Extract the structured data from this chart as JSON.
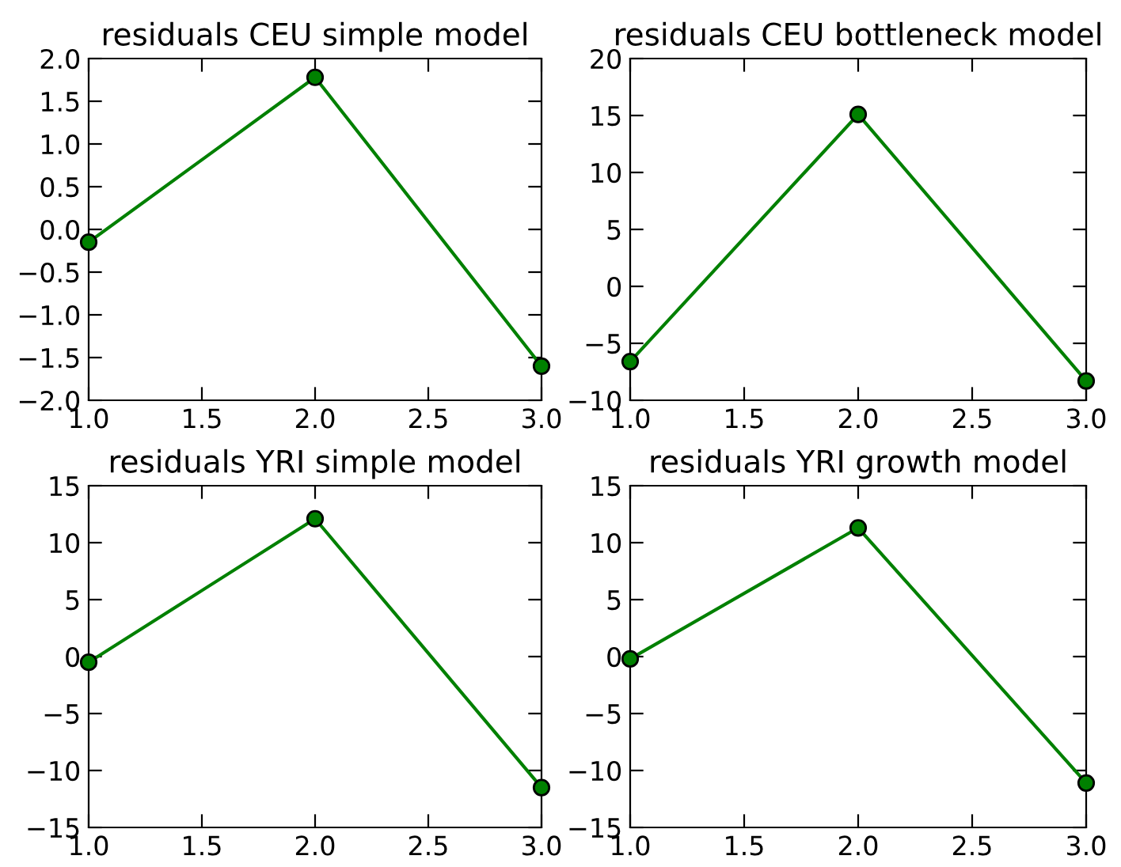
{
  "chart_data": [
    {
      "type": "line",
      "title": "residuals CEU simple model",
      "x": [
        1,
        2,
        3
      ],
      "series": [
        {
          "color": "#008000",
          "values": [
            -0.15,
            1.78,
            -1.6
          ]
        }
      ],
      "xlim": [
        1.0,
        3.0
      ],
      "xticks": [
        {
          "value": 1.0,
          "label": "1.0"
        },
        {
          "value": 1.5,
          "label": "1.5"
        },
        {
          "value": 2.0,
          "label": "2.0"
        },
        {
          "value": 2.5,
          "label": "2.5"
        },
        {
          "value": 3.0,
          "label": "3.0"
        }
      ],
      "ylim": [
        -2.0,
        2.0
      ],
      "yticks": [
        {
          "value": -2.0,
          "label": "−2.0"
        },
        {
          "value": -1.5,
          "label": "−1.5"
        },
        {
          "value": -1.0,
          "label": "−1.0"
        },
        {
          "value": -0.5,
          "label": "−0.5"
        },
        {
          "value": 0.0,
          "label": "0.0"
        },
        {
          "value": 0.5,
          "label": "0.5"
        },
        {
          "value": 1.0,
          "label": "1.0"
        },
        {
          "value": 1.5,
          "label": "1.5"
        },
        {
          "value": 2.0,
          "label": "2.0"
        }
      ],
      "marker": "circle",
      "grid": false
    },
    {
      "type": "line",
      "title": "residuals CEU bottleneck model",
      "x": [
        1,
        2,
        3
      ],
      "series": [
        {
          "color": "#008000",
          "values": [
            -6.6,
            15.1,
            -8.3
          ]
        }
      ],
      "xlim": [
        1.0,
        3.0
      ],
      "xticks": [
        {
          "value": 1.0,
          "label": "1.0"
        },
        {
          "value": 1.5,
          "label": "1.5"
        },
        {
          "value": 2.0,
          "label": "2.0"
        },
        {
          "value": 2.5,
          "label": "2.5"
        },
        {
          "value": 3.0,
          "label": "3.0"
        }
      ],
      "ylim": [
        -10,
        20
      ],
      "yticks": [
        {
          "value": -10,
          "label": "−10"
        },
        {
          "value": -5,
          "label": "−5"
        },
        0,
        5,
        10,
        15,
        20
      ],
      "marker": "circle",
      "grid": false
    },
    {
      "type": "line",
      "title": "residuals YRI simple model",
      "x": [
        1,
        2,
        3
      ],
      "series": [
        {
          "color": "#008000",
          "values": [
            -0.5,
            12.1,
            -11.5
          ]
        }
      ],
      "xlim": [
        1.0,
        3.0
      ],
      "xticks": [
        {
          "value": 1.0,
          "label": "1.0"
        },
        {
          "value": 1.5,
          "label": "1.5"
        },
        {
          "value": 2.0,
          "label": "2.0"
        },
        {
          "value": 2.5,
          "label": "2.5"
        },
        {
          "value": 3.0,
          "label": "3.0"
        }
      ],
      "ylim": [
        -15,
        15
      ],
      "yticks": [
        {
          "value": -15,
          "label": "−15"
        },
        {
          "value": -10,
          "label": "−10"
        },
        {
          "value": -5,
          "label": "−5"
        },
        0,
        5,
        10,
        15
      ],
      "marker": "circle",
      "grid": false
    },
    {
      "type": "line",
      "title": "residuals YRI growth model",
      "x": [
        1,
        2,
        3
      ],
      "series": [
        {
          "color": "#008000",
          "values": [
            -0.2,
            11.3,
            -11.1
          ]
        }
      ],
      "xlim": [
        1.0,
        3.0
      ],
      "xticks": [
        {
          "value": 1.0,
          "label": "1.0"
        },
        {
          "value": 1.5,
          "label": "1.5"
        },
        {
          "value": 2.0,
          "label": "2.0"
        },
        {
          "value": 2.5,
          "label": "2.5"
        },
        {
          "value": 3.0,
          "label": "3.0"
        }
      ],
      "ylim": [
        -15,
        15
      ],
      "yticks": [
        {
          "value": -15,
          "label": "−15"
        },
        {
          "value": -10,
          "label": "−10"
        },
        {
          "value": -5,
          "label": "−5"
        },
        0,
        5,
        10,
        15
      ],
      "marker": "circle",
      "grid": false
    }
  ]
}
